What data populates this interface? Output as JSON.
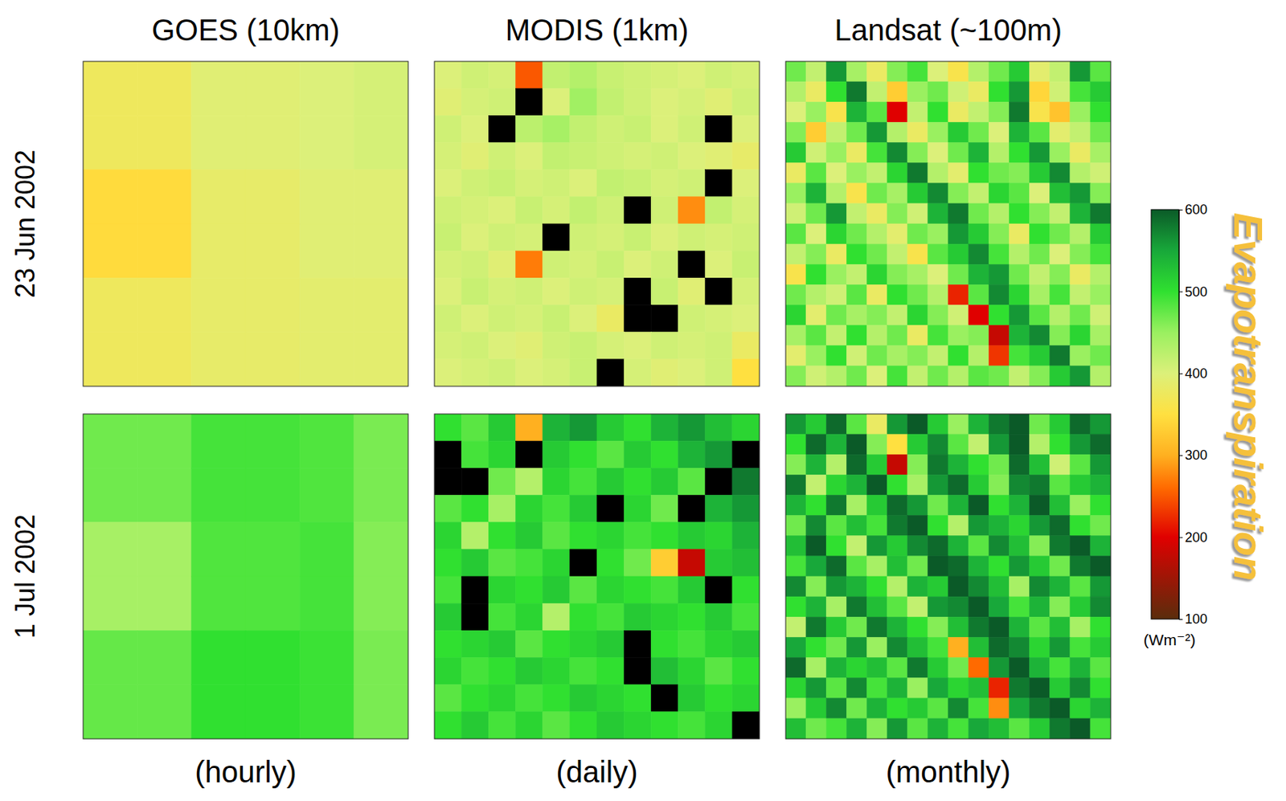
{
  "chart_data": {
    "type": "heatmap",
    "title": "Evapotranspiration",
    "columns": [
      "GOES (10km)",
      "MODIS (1km)",
      "Landsat (~100m)"
    ],
    "column_notes": [
      "(hourly)",
      "(daily)",
      "(monthly)"
    ],
    "rows": [
      "23 Jun 2002",
      "1 Jul 2002"
    ],
    "tick_labels": false,
    "colorbar": {
      "range": [
        100,
        600
      ],
      "ticks": [
        100,
        200,
        300,
        400,
        500,
        600
      ],
      "unit": "(Wm⁻²)"
    },
    "cells": [
      [
        [
          [
            375,
            375,
            395,
            395,
            400,
            405
          ],
          [
            375,
            375,
            395,
            395,
            400,
            405
          ],
          [
            345,
            345,
            385,
            385,
            395,
            395
          ],
          [
            345,
            345,
            385,
            385,
            395,
            395
          ],
          [
            375,
            375,
            385,
            385,
            390,
            390
          ],
          [
            375,
            375,
            385,
            385,
            390,
            390
          ]
        ],
        [
          [
            400,
            410,
            405,
            250,
            420,
            430,
            415,
            410,
            405,
            400,
            410,
            405
          ],
          [
            395,
            405,
            410,
            null,
            400,
            445,
            420,
            410,
            400,
            405,
            395,
            410
          ],
          [
            410,
            400,
            null,
            425,
            440,
            420,
            410,
            415,
            400,
            410,
            null,
            400
          ],
          [
            405,
            395,
            410,
            400,
            420,
            415,
            410,
            405,
            410,
            400,
            395,
            385
          ],
          [
            400,
            410,
            415,
            405,
            410,
            400,
            420,
            415,
            405,
            410,
            null,
            400
          ],
          [
            410,
            405,
            400,
            415,
            405,
            420,
            410,
            null,
            410,
            280,
            420,
            405
          ],
          [
            415,
            400,
            410,
            405,
            null,
            410,
            405,
            415,
            400,
            410,
            405,
            410
          ],
          [
            405,
            410,
            395,
            270,
            410,
            405,
            415,
            400,
            410,
            null,
            400,
            415
          ],
          [
            400,
            415,
            405,
            410,
            400,
            410,
            405,
            null,
            415,
            395,
            null,
            405
          ],
          [
            410,
            400,
            410,
            405,
            415,
            400,
            380,
            null,
            null,
            410,
            405,
            400
          ],
          [
            405,
            410,
            400,
            395,
            410,
            415,
            405,
            400,
            410,
            405,
            410,
            380
          ],
          [
            400,
            405,
            410,
            400,
            405,
            415,
            null,
            405,
            395,
            400,
            410,
            350
          ]
        ],
        [
          [
            470,
            420,
            560,
            440,
            380,
            460,
            490,
            400,
            360,
            430,
            470,
            520,
            390,
            420,
            560,
            480
          ],
          [
            430,
            380,
            500,
            580,
            420,
            330,
            450,
            470,
            410,
            380,
            500,
            560,
            340,
            410,
            490,
            520
          ],
          [
            400,
            450,
            360,
            540,
            480,
            200,
            420,
            500,
            380,
            420,
            460,
            580,
            360,
            320,
            450,
            500
          ],
          [
            460,
            330,
            420,
            470,
            560,
            430,
            380,
            450,
            520,
            470,
            400,
            540,
            480,
            390,
            420,
            470
          ],
          [
            520,
            410,
            450,
            380,
            490,
            570,
            460,
            400,
            470,
            540,
            430,
            500,
            560,
            450,
            380,
            440
          ],
          [
            380,
            480,
            400,
            450,
            420,
            510,
            580,
            430,
            390,
            500,
            470,
            460,
            520,
            570,
            430,
            410
          ],
          [
            450,
            540,
            430,
            360,
            470,
            440,
            520,
            570,
            460,
            420,
            510,
            480,
            400,
            530,
            560,
            460
          ],
          [
            410,
            470,
            560,
            420,
            380,
            460,
            410,
            540,
            580,
            470,
            430,
            500,
            460,
            420,
            540,
            580
          ],
          [
            480,
            400,
            510,
            470,
            430,
            390,
            470,
            450,
            560,
            520,
            460,
            380,
            500,
            470,
            430,
            520
          ],
          [
            420,
            460,
            380,
            500,
            470,
            420,
            360,
            480,
            520,
            570,
            490,
            430,
            470,
            400,
            460,
            490
          ],
          [
            360,
            500,
            450,
            420,
            510,
            460,
            440,
            400,
            470,
            540,
            560,
            470,
            420,
            460,
            380,
            430
          ],
          [
            470,
            430,
            410,
            480,
            380,
            500,
            470,
            430,
            220,
            480,
            570,
            510,
            440,
            490,
            420,
            450
          ],
          [
            510,
            390,
            470,
            440,
            460,
            420,
            510,
            460,
            410,
            200,
            500,
            560,
            480,
            430,
            470,
            410
          ],
          [
            440,
            480,
            420,
            500,
            430,
            470,
            380,
            490,
            450,
            460,
            180,
            540,
            570,
            460,
            510,
            440
          ],
          [
            390,
            450,
            500,
            410,
            470,
            440,
            460,
            420,
            500,
            430,
            230,
            490,
            520,
            580,
            450,
            470
          ],
          [
            460,
            410,
            430,
            470,
            400,
            490,
            420,
            470,
            430,
            480,
            470,
            420,
            460,
            520,
            560,
            430
          ]
        ]
      ],
      [
        [
          [
            470,
            470,
            490,
            490,
            485,
            465
          ],
          [
            470,
            470,
            490,
            490,
            485,
            465
          ],
          [
            440,
            440,
            485,
            485,
            490,
            460
          ],
          [
            440,
            440,
            485,
            485,
            490,
            460
          ],
          [
            475,
            475,
            500,
            500,
            495,
            465
          ],
          [
            475,
            475,
            500,
            500,
            495,
            465
          ]
        ],
        [
          [
            500,
            480,
            520,
            300,
            540,
            560,
            520,
            500,
            540,
            560,
            530,
            510
          ],
          [
            null,
            490,
            510,
            null,
            520,
            500,
            480,
            520,
            500,
            540,
            560,
            null
          ],
          [
            null,
            null,
            470,
            430,
            510,
            490,
            520,
            500,
            520,
            480,
            null,
            580
          ],
          [
            480,
            500,
            440,
            510,
            490,
            520,
            null,
            510,
            470,
            null,
            540,
            560
          ],
          [
            510,
            430,
            500,
            520,
            480,
            500,
            510,
            490,
            500,
            520,
            510,
            540
          ],
          [
            500,
            520,
            480,
            490,
            510,
            null,
            500,
            470,
            330,
            180,
            520,
            530
          ],
          [
            490,
            null,
            510,
            500,
            520,
            480,
            510,
            500,
            490,
            520,
            null,
            500
          ],
          [
            520,
            null,
            490,
            510,
            430,
            500,
            490,
            520,
            510,
            500,
            520,
            490
          ],
          [
            500,
            510,
            520,
            480,
            500,
            510,
            520,
            null,
            500,
            490,
            510,
            520
          ],
          [
            510,
            490,
            500,
            520,
            510,
            490,
            500,
            null,
            530,
            510,
            480,
            500
          ],
          [
            480,
            500,
            510,
            490,
            500,
            520,
            510,
            500,
            null,
            520,
            500,
            510
          ],
          [
            500,
            520,
            490,
            510,
            480,
            500,
            520,
            510,
            500,
            490,
            510,
            null
          ]
        ],
        [
          [
            560,
            520,
            590,
            480,
            380,
            560,
            600,
            520,
            450,
            540,
            580,
            600,
            470,
            520,
            590,
            560
          ],
          [
            500,
            590,
            540,
            600,
            460,
            350,
            520,
            570,
            480,
            420,
            560,
            600,
            430,
            500,
            560,
            590
          ],
          [
            460,
            540,
            430,
            590,
            520,
            180,
            460,
            580,
            540,
            500,
            470,
            590,
            530,
            410,
            480,
            560
          ],
          [
            580,
            420,
            510,
            540,
            600,
            500,
            440,
            560,
            590,
            520,
            460,
            570,
            580,
            480,
            520,
            540
          ],
          [
            540,
            500,
            580,
            440,
            520,
            590,
            560,
            470,
            540,
            600,
            500,
            540,
            600,
            530,
            450,
            500
          ],
          [
            470,
            570,
            480,
            530,
            490,
            580,
            600,
            500,
            430,
            560,
            540,
            510,
            560,
            590,
            500,
            470
          ],
          [
            530,
            600,
            500,
            420,
            560,
            520,
            570,
            590,
            540,
            480,
            570,
            530,
            460,
            580,
            600,
            540
          ],
          [
            490,
            550,
            590,
            480,
            440,
            530,
            470,
            600,
            590,
            540,
            500,
            560,
            520,
            470,
            580,
            600
          ],
          [
            570,
            460,
            560,
            540,
            500,
            430,
            540,
            520,
            600,
            570,
            530,
            440,
            570,
            540,
            480,
            560
          ],
          [
            500,
            540,
            440,
            580,
            530,
            480,
            420,
            560,
            570,
            600,
            550,
            490,
            540,
            460,
            520,
            570
          ],
          [
            420,
            580,
            520,
            470,
            580,
            540,
            500,
            460,
            530,
            580,
            600,
            540,
            480,
            530,
            440,
            500
          ],
          [
            550,
            500,
            470,
            560,
            450,
            570,
            530,
            490,
            300,
            530,
            590,
            570,
            510,
            560,
            490,
            520
          ],
          [
            590,
            440,
            540,
            510,
            530,
            480,
            580,
            520,
            470,
            260,
            560,
            600,
            540,
            490,
            540,
            480
          ],
          [
            510,
            560,
            480,
            570,
            490,
            540,
            450,
            550,
            510,
            530,
            220,
            580,
            600,
            520,
            570,
            500
          ],
          [
            450,
            520,
            570,
            470,
            540,
            500,
            520,
            480,
            570,
            490,
            280,
            550,
            580,
            600,
            510,
            540
          ],
          [
            530,
            470,
            490,
            540,
            460,
            560,
            480,
            540,
            490,
            550,
            530,
            480,
            520,
            580,
            600,
            490
          ]
        ]
      ]
    ]
  }
}
